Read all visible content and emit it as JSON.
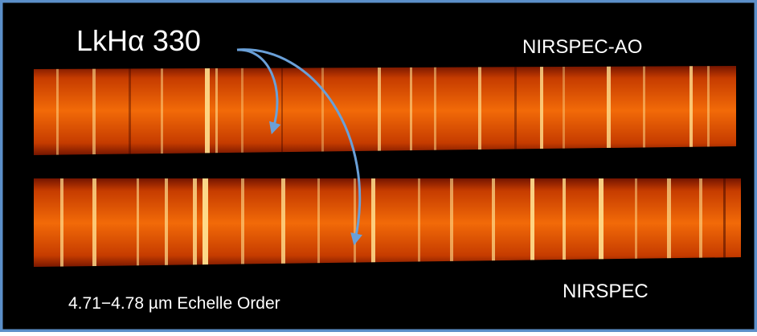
{
  "labels": {
    "target": "LkHα 330",
    "top_instrument": "NIRSPEC-AO",
    "bottom_instrument": "NIRSPEC",
    "order": "4.71−4.78 µm Echelle Order"
  }
}
